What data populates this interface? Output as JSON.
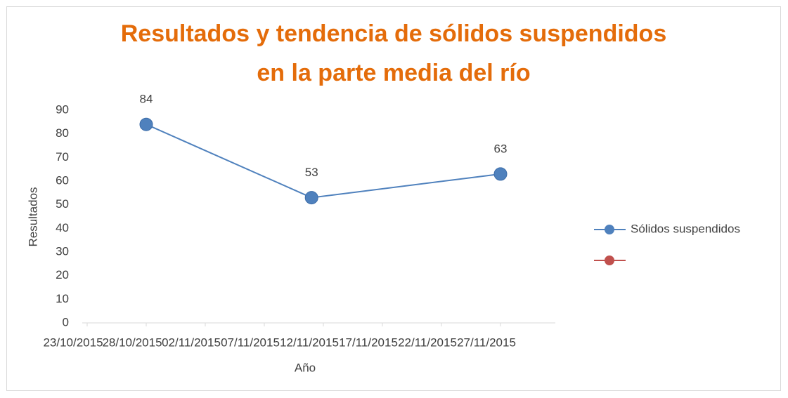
{
  "chart_data": {
    "type": "line",
    "title": [
      "Resultados y tendencia de sólidos suspendidos",
      "en la parte media del río"
    ],
    "x_label": "Año",
    "y_label": "Resultados",
    "x": [
      "28/10/2015",
      "11/11/2015",
      "27/11/2015"
    ],
    "series": [
      {
        "name": "Sólidos suspendidos",
        "color": "#4f81bd",
        "values": [
          84,
          53,
          63
        ]
      },
      {
        "color": "#c0504d",
        "values": [
          null,
          null,
          null
        ]
      }
    ],
    "xlim": [
      "23/10/2015",
      "27/11/2015"
    ],
    "xticks": [
      "23/10/2015",
      "28/10/2015",
      "02/11/2015",
      "07/11/2015",
      "12/11/2015",
      "17/11/2015",
      "22/11/2015",
      "27/11/2015"
    ],
    "ylim": [
      0,
      90
    ],
    "yticks": [
      0,
      10,
      20,
      30,
      40,
      50,
      60,
      70,
      80,
      90
    ],
    "grid": false,
    "legend": "right"
  }
}
